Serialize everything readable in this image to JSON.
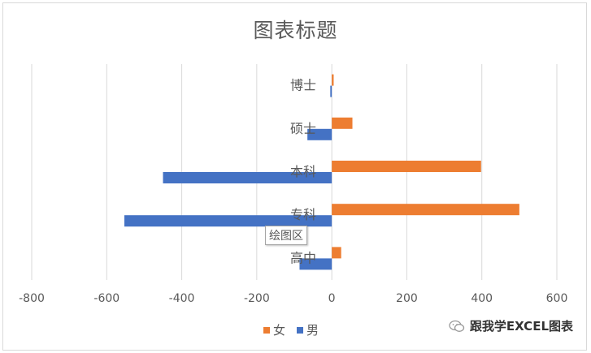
{
  "chart_data": {
    "type": "bar",
    "orientation": "horizontal",
    "title": "图表标题",
    "categories": [
      "高中",
      "专科",
      "本科",
      "硕士",
      "博士"
    ],
    "series": [
      {
        "name": "女",
        "color": "#ed7d31",
        "values": [
          25,
          500,
          398,
          55,
          5
        ]
      },
      {
        "name": "男",
        "color": "#4472c4",
        "values": [
          -86,
          -553,
          -450,
          -65,
          -4
        ]
      }
    ],
    "xlim": [
      -800,
      600
    ],
    "xticks": [
      -800,
      -600,
      -400,
      -200,
      0,
      200,
      400,
      600
    ],
    "grid": true,
    "legend_position": "bottom"
  },
  "tooltip": {
    "label": "绘图区"
  },
  "watermark": {
    "text": "跟我学EXCEL图表",
    "icon": "wechat-icon"
  }
}
